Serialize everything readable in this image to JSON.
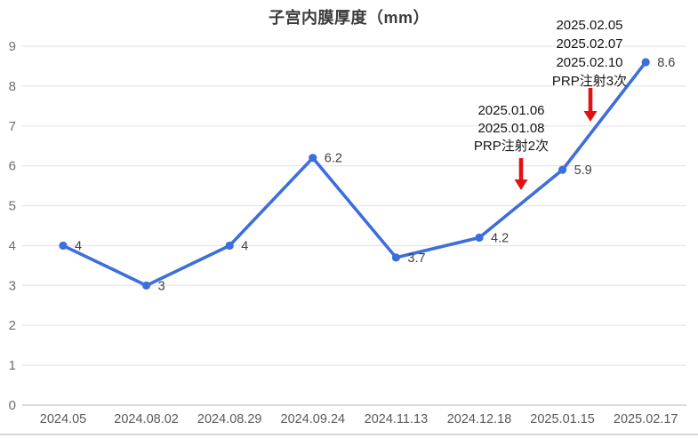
{
  "page": {
    "title": "子宫内膜厚度（mm）"
  },
  "colors": {
    "line": "#3d6edc",
    "point": "#3d6edc",
    "arrow_red": "#e31212",
    "grid": "#e7e7e7",
    "grid_zero": "#dcdcdc",
    "y_axis_label": "#6e6e6e",
    "x_axis_label": "#595959",
    "data_label": "#404040",
    "title_text": "#3b3b3b",
    "annotation_text": "#141414"
  },
  "chart_data": {
    "type": "line",
    "title": "子宫内膜厚度（mm）",
    "categories": [
      "2024.05",
      "2024.08.02",
      "2024.08.29",
      "2024.09.24",
      "2024.11.13",
      "2024.12.18",
      "2025.01.15",
      "2025.02.17"
    ],
    "values": [
      4,
      3,
      4,
      6.2,
      3.7,
      4.2,
      5.9,
      8.6
    ],
    "point_labels": [
      "4",
      "3",
      "4",
      "6.2",
      "3.7",
      "4.2",
      "5.9",
      "8.6"
    ],
    "xlabel": "",
    "ylabel": "",
    "ylim": [
      0,
      9
    ],
    "y_ticks": [
      0,
      1,
      2,
      3,
      4,
      5,
      6,
      7,
      8,
      9
    ],
    "grid": true,
    "legend": false,
    "annotations": [
      {
        "lines": [
          "2025.01.06",
          "2025.01.08",
          "PRP注射2次"
        ],
        "arrow": "down"
      },
      {
        "lines": [
          "2025.02.05",
          "2025.02.07",
          "2025.02.10",
          "PRP注射3次"
        ],
        "arrow": "down"
      }
    ]
  }
}
